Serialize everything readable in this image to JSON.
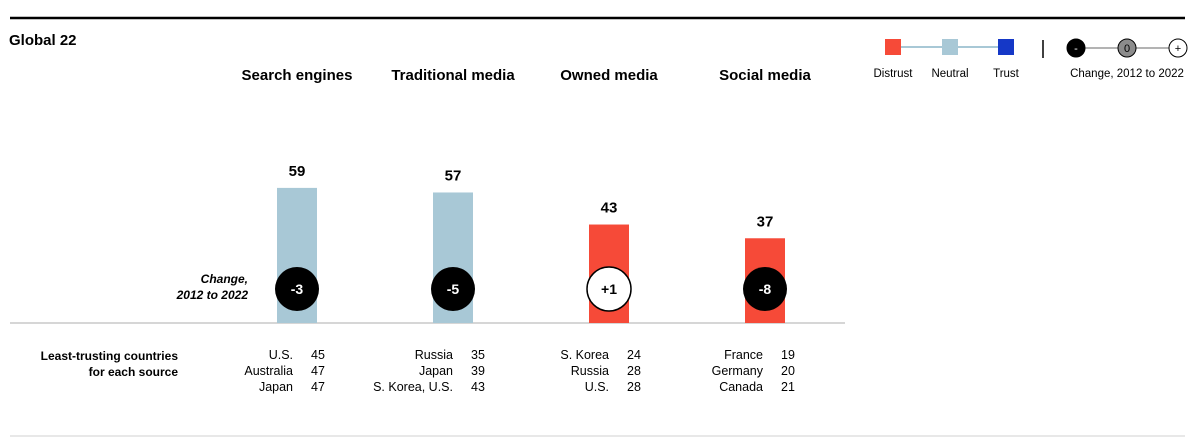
{
  "region": "Global 22",
  "legend": {
    "items": [
      {
        "label": "Distrust",
        "color": "#f64a38"
      },
      {
        "label": "Neutral",
        "color": "#a8c8d6"
      },
      {
        "label": "Trust",
        "color": "#1538c7"
      }
    ],
    "change_symbols": [
      "-",
      "0",
      "+"
    ],
    "change_label": "Change, 2012 to 2022"
  },
  "change_caption": [
    "Change,",
    "2012 to 2022"
  ],
  "least_caption": [
    "Least-trusting countries",
    "for each source"
  ],
  "chart_data": {
    "type": "bar",
    "title": "Global 22",
    "categories": [
      "Search engines",
      "Traditional media",
      "Owned media",
      "Social media"
    ],
    "values": [
      59,
      57,
      43,
      37
    ],
    "status": [
      "Neutral",
      "Neutral",
      "Distrust",
      "Distrust"
    ],
    "change_2012_2022": [
      "-3",
      "-5",
      "+1",
      "-8"
    ],
    "ylim": [
      0,
      100
    ],
    "xlabel": "",
    "ylabel": "",
    "least_trusting": [
      [
        {
          "country": "U.S.",
          "value": "45"
        },
        {
          "country": "Australia",
          "value": "47"
        },
        {
          "country": "Japan",
          "value": "47"
        }
      ],
      [
        {
          "country": "Russia",
          "value": "35"
        },
        {
          "country": "Japan",
          "value": "39"
        },
        {
          "country": "S. Korea, U.S.",
          "value": "43"
        }
      ],
      [
        {
          "country": "S. Korea",
          "value": "24"
        },
        {
          "country": "Russia",
          "value": "28"
        },
        {
          "country": "U.S.",
          "value": "28"
        }
      ],
      [
        {
          "country": "France",
          "value": "19"
        },
        {
          "country": "Germany",
          "value": "20"
        },
        {
          "country": "Canada",
          "value": "21"
        }
      ]
    ]
  }
}
